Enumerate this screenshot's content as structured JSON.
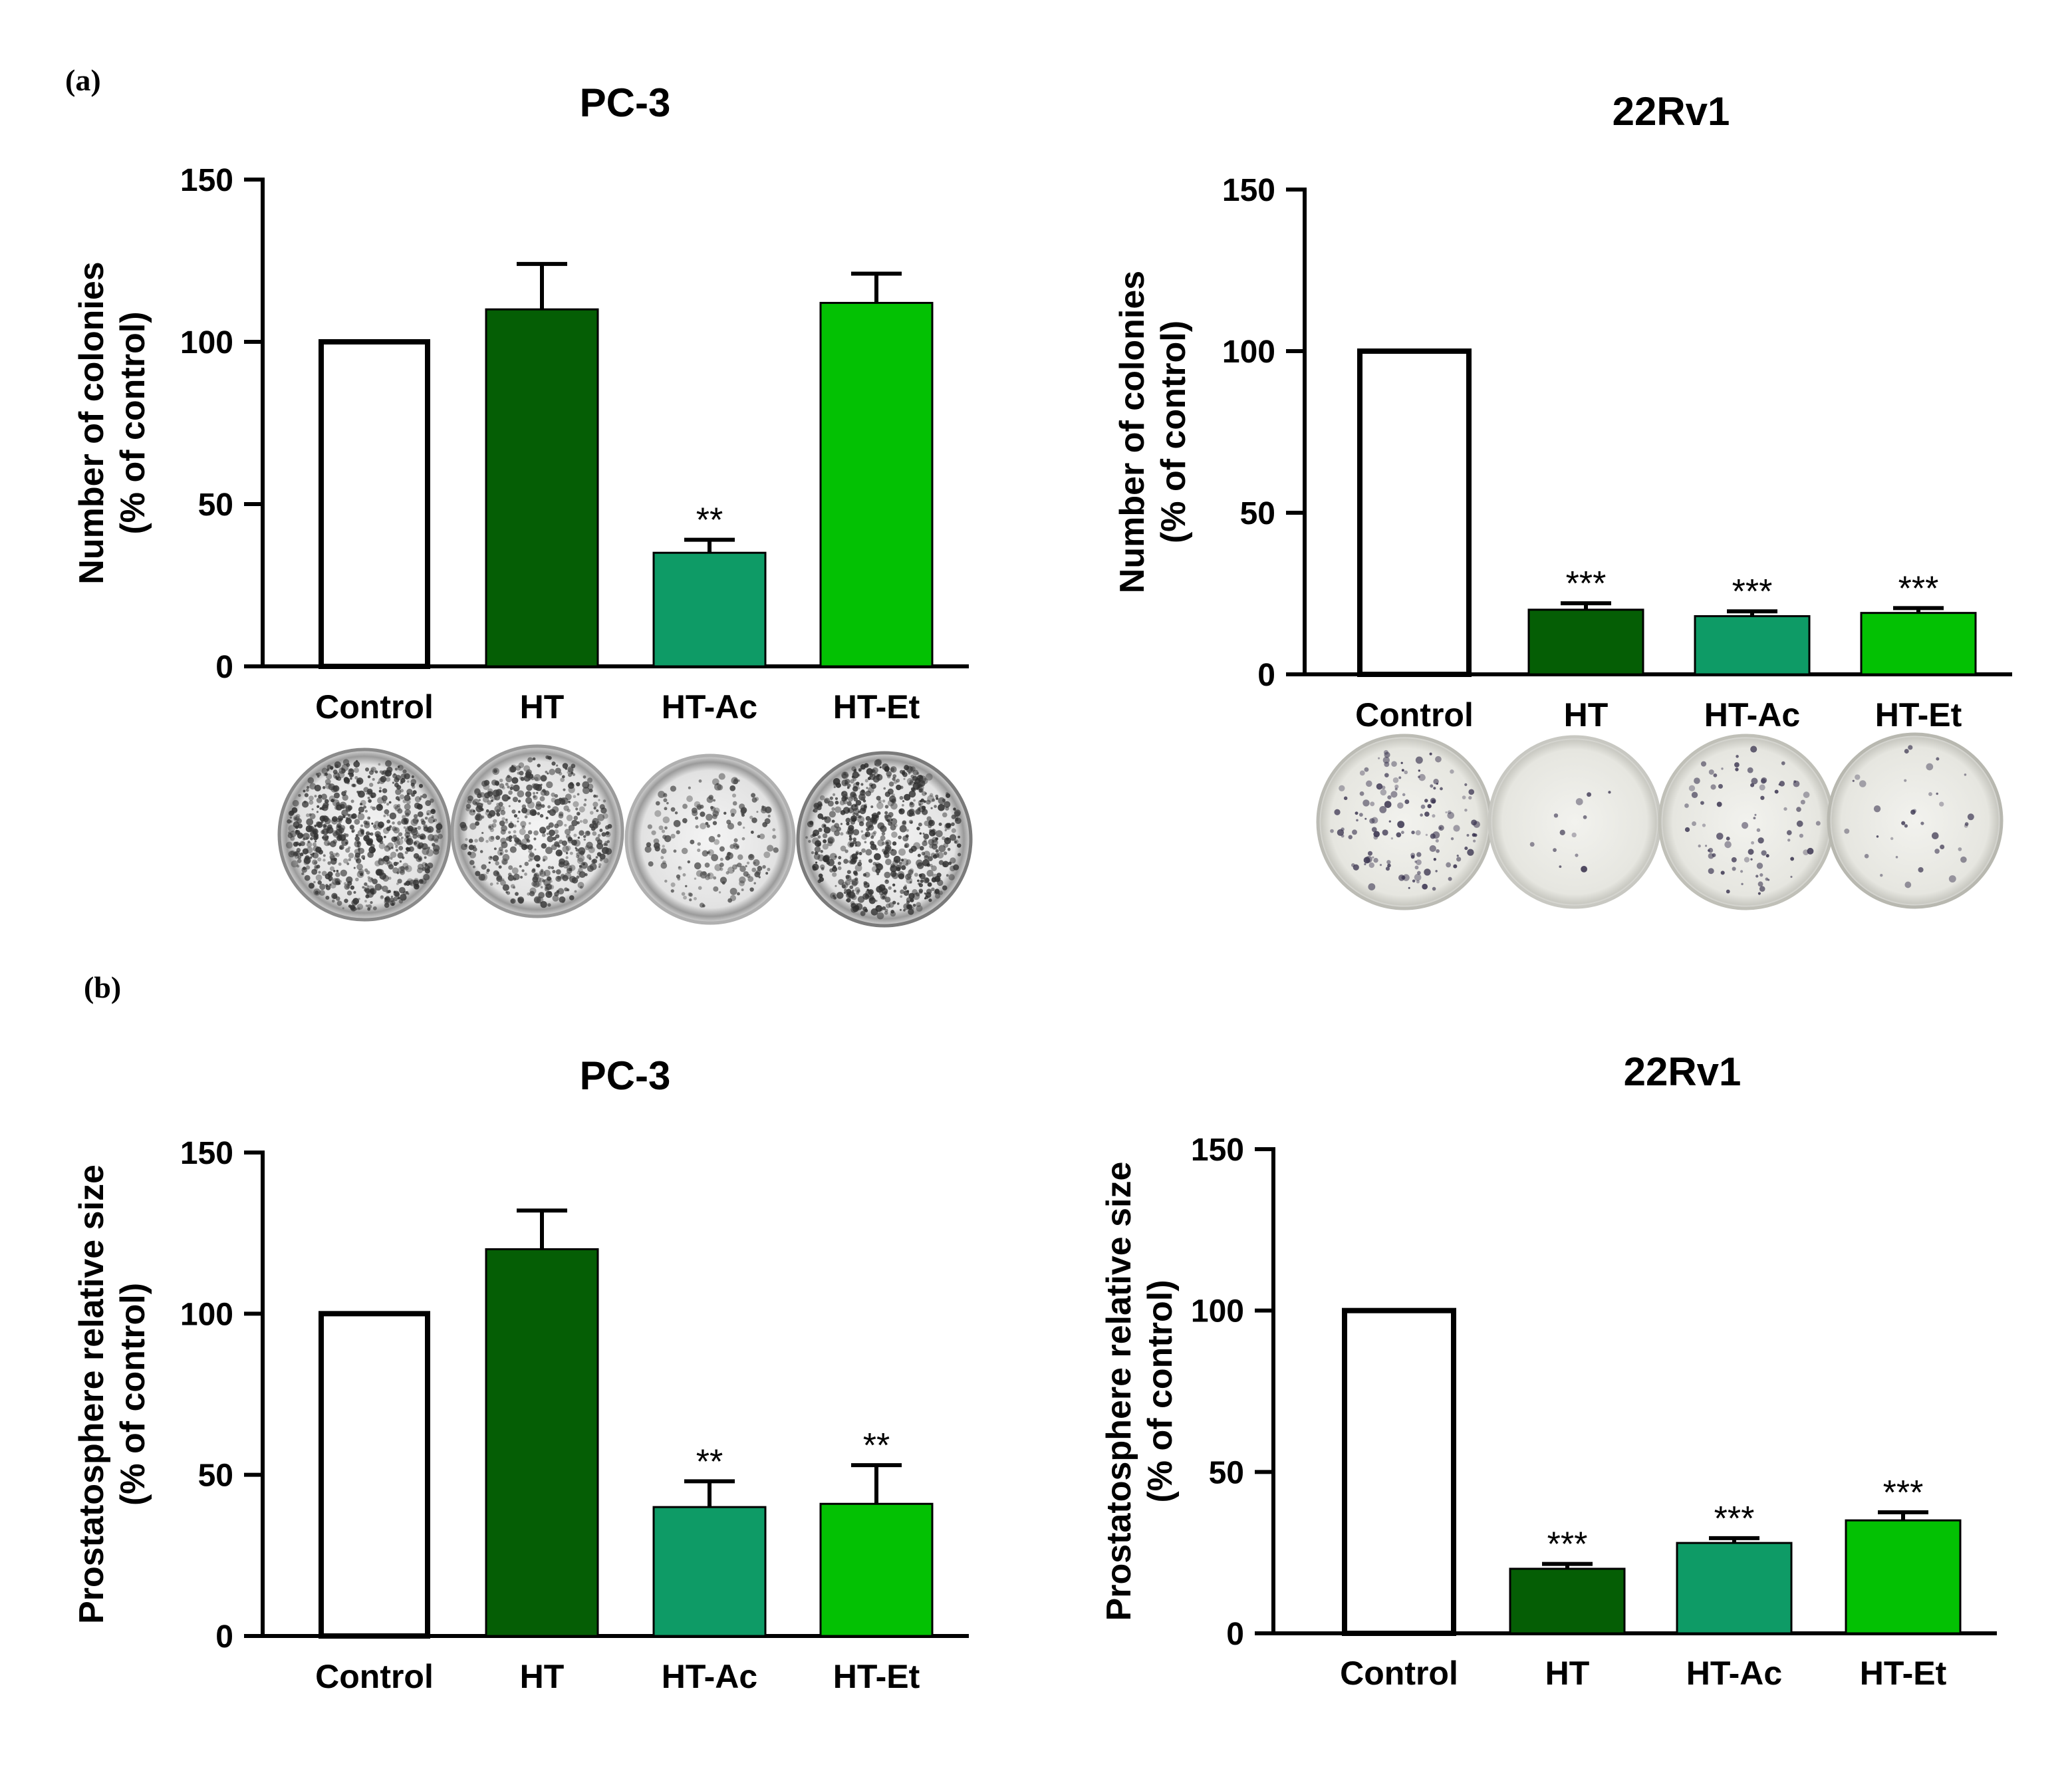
{
  "panels": [
    {
      "label": "(a)"
    },
    {
      "label": "(b)"
    }
  ],
  "colors": {
    "control": "#ffffff",
    "HT": "#055e05",
    "HT-Ac": "#0e9b66",
    "HT-Et": "#03c103",
    "axis": "#000000"
  },
  "chart_data": [
    {
      "type": "bar",
      "panel": "(a)",
      "title": "PC-3",
      "xlabel": "",
      "ylabel": [
        "Number of colonies",
        "(% of control)"
      ],
      "ylim": [
        0,
        150
      ],
      "yticks": [
        0,
        50,
        100,
        150
      ],
      "categories": [
        "Control",
        "HT",
        "HT-Ac",
        "HT-Et"
      ],
      "values": [
        100,
        110,
        35,
        112
      ],
      "errors": [
        0,
        14,
        4,
        9
      ],
      "significance": [
        "",
        "",
        "**",
        ""
      ],
      "has_colony_images": true
    },
    {
      "type": "bar",
      "panel": "(a)",
      "title": "22Rv1",
      "xlabel": "",
      "ylabel": [
        "Number of colonies",
        "(% of control)"
      ],
      "ylim": [
        0,
        150
      ],
      "yticks": [
        0,
        50,
        100,
        150
      ],
      "categories": [
        "Control",
        "HT",
        "HT-Ac",
        "HT-Et"
      ],
      "values": [
        100,
        20,
        18,
        19
      ],
      "errors": [
        0,
        2,
        1.5,
        1.5
      ],
      "significance": [
        "",
        "***",
        "***",
        "***"
      ],
      "has_colony_images": true
    },
    {
      "type": "bar",
      "panel": "(b)",
      "title": "PC-3",
      "xlabel": "",
      "ylabel": [
        "Prostatosphere relative size",
        "(% of control)"
      ],
      "ylim": [
        0,
        150
      ],
      "yticks": [
        0,
        50,
        100,
        150
      ],
      "categories": [
        "Control",
        "HT",
        "HT-Ac",
        "HT-Et"
      ],
      "values": [
        100,
        120,
        40,
        41
      ],
      "errors": [
        0,
        12,
        8,
        12
      ],
      "significance": [
        "",
        "",
        "**",
        "**"
      ],
      "has_colony_images": false
    },
    {
      "type": "bar",
      "panel": "(b)",
      "title": "22Rv1",
      "xlabel": "",
      "ylabel": [
        "Prostatosphere relative size",
        "(% of control)"
      ],
      "ylim": [
        0,
        150
      ],
      "yticks": [
        0,
        50,
        100,
        150
      ],
      "categories": [
        "Control",
        "HT",
        "HT-Ac",
        "HT-Et"
      ],
      "values": [
        100,
        20,
        28,
        35
      ],
      "errors": [
        0,
        1.5,
        1.5,
        2.5
      ],
      "significance": [
        "",
        "***",
        "***",
        "***"
      ],
      "has_colony_images": false
    }
  ]
}
